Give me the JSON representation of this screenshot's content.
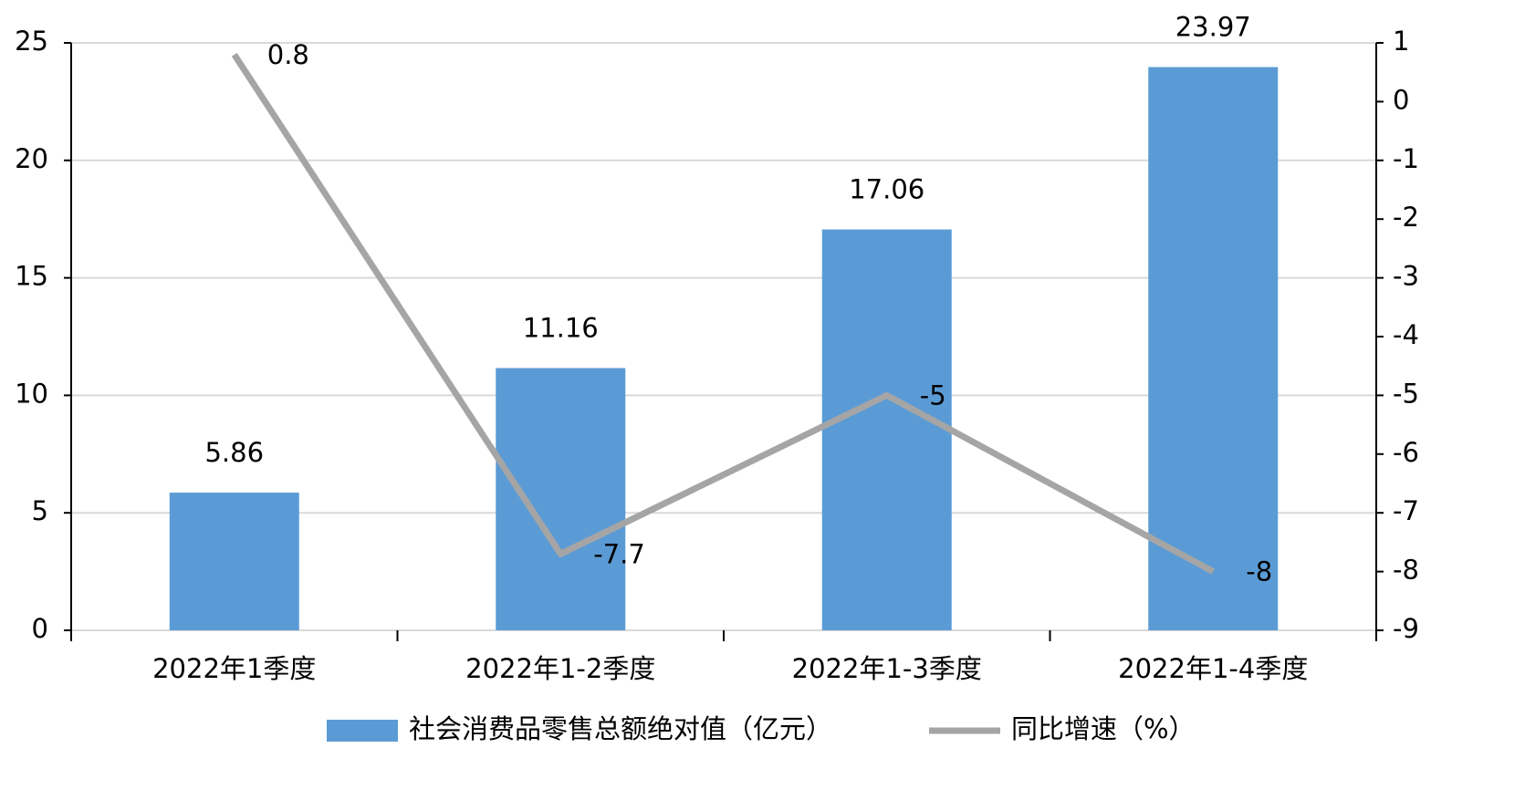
{
  "chart_data": {
    "type": "bar",
    "categories": [
      "2022年1季度",
      "2022年1-2季度",
      "2022年1-3季度",
      "2022年1-4季度"
    ],
    "series": [
      {
        "name": "社会消费品零售总额绝对值（亿元）",
        "type": "bar",
        "color": "#5b9bd5",
        "values": [
          5.86,
          11.16,
          17.06,
          23.97
        ]
      },
      {
        "name": "同比增速（%）",
        "type": "line",
        "axis": "y2",
        "color": "#a5a5a5",
        "values": [
          0.8,
          -7.7,
          -5,
          -8
        ]
      }
    ],
    "ylim": [
      0,
      25
    ],
    "yticks": [
      0,
      5,
      10,
      15,
      20,
      25
    ],
    "y2lim": [
      -9,
      1
    ],
    "y2ticks": [
      -9,
      -8,
      -7,
      -6,
      -5,
      -4,
      -3,
      -2,
      -1,
      0,
      1
    ],
    "grid": true
  }
}
